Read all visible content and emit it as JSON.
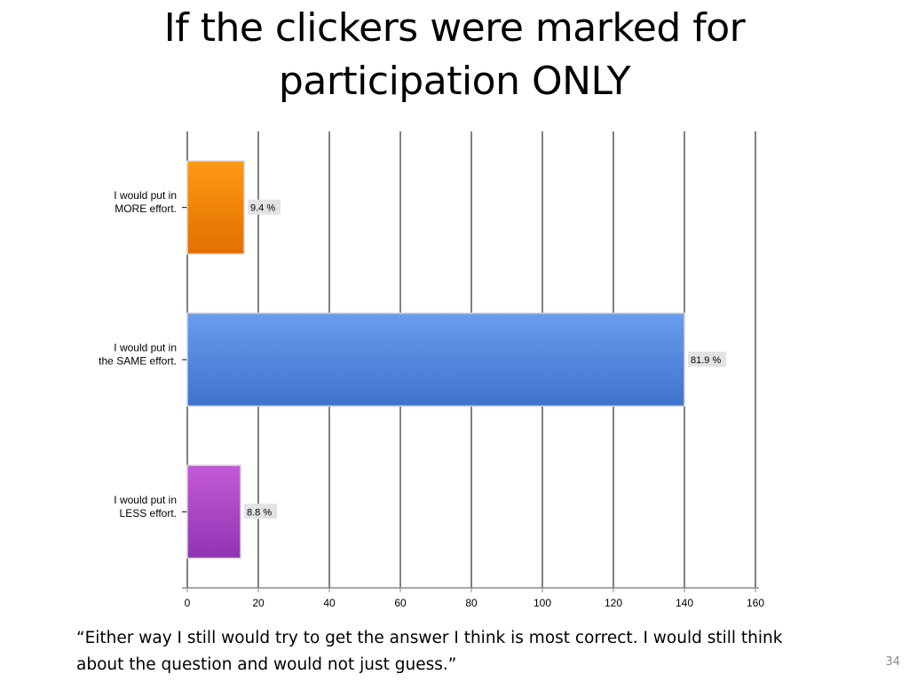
{
  "slide": {
    "title_lines": [
      "If the clickers were marked for",
      "participation ONLY"
    ],
    "quote_lines": [
      "“Either way I still would try to get the answer I think is most correct. I would still think",
      "about the question and would not just guess.”"
    ],
    "slide_number": "34"
  },
  "chart_data": {
    "type": "bar",
    "orientation": "horizontal",
    "title": "",
    "xlabel": "",
    "ylabel": "",
    "categories": [
      [
        "I would put in",
        "MORE effort."
      ],
      [
        "I would put in",
        "the SAME effort."
      ],
      [
        "I would put in",
        "LESS effort."
      ]
    ],
    "values": [
      16,
      140,
      15
    ],
    "value_labels": [
      "9.4 %",
      "81.9 %",
      "8.8 %"
    ],
    "xlim": [
      0,
      160
    ],
    "xticks": [
      0,
      20,
      40,
      60,
      80,
      100,
      120,
      140,
      160
    ],
    "grid": "vertical",
    "legend": "none",
    "colors": {
      "bars": [
        [
          "#ff9a14",
          "#e06f00"
        ],
        [
          "#6a9ded",
          "#3f72cc"
        ],
        [
          "#c35ad8",
          "#9134b2"
        ]
      ],
      "bar_outline": "#d0d0d0",
      "value_label_bg": "#e3e3e3",
      "gridline": "#000000",
      "axis": "#8c8c8c"
    }
  }
}
